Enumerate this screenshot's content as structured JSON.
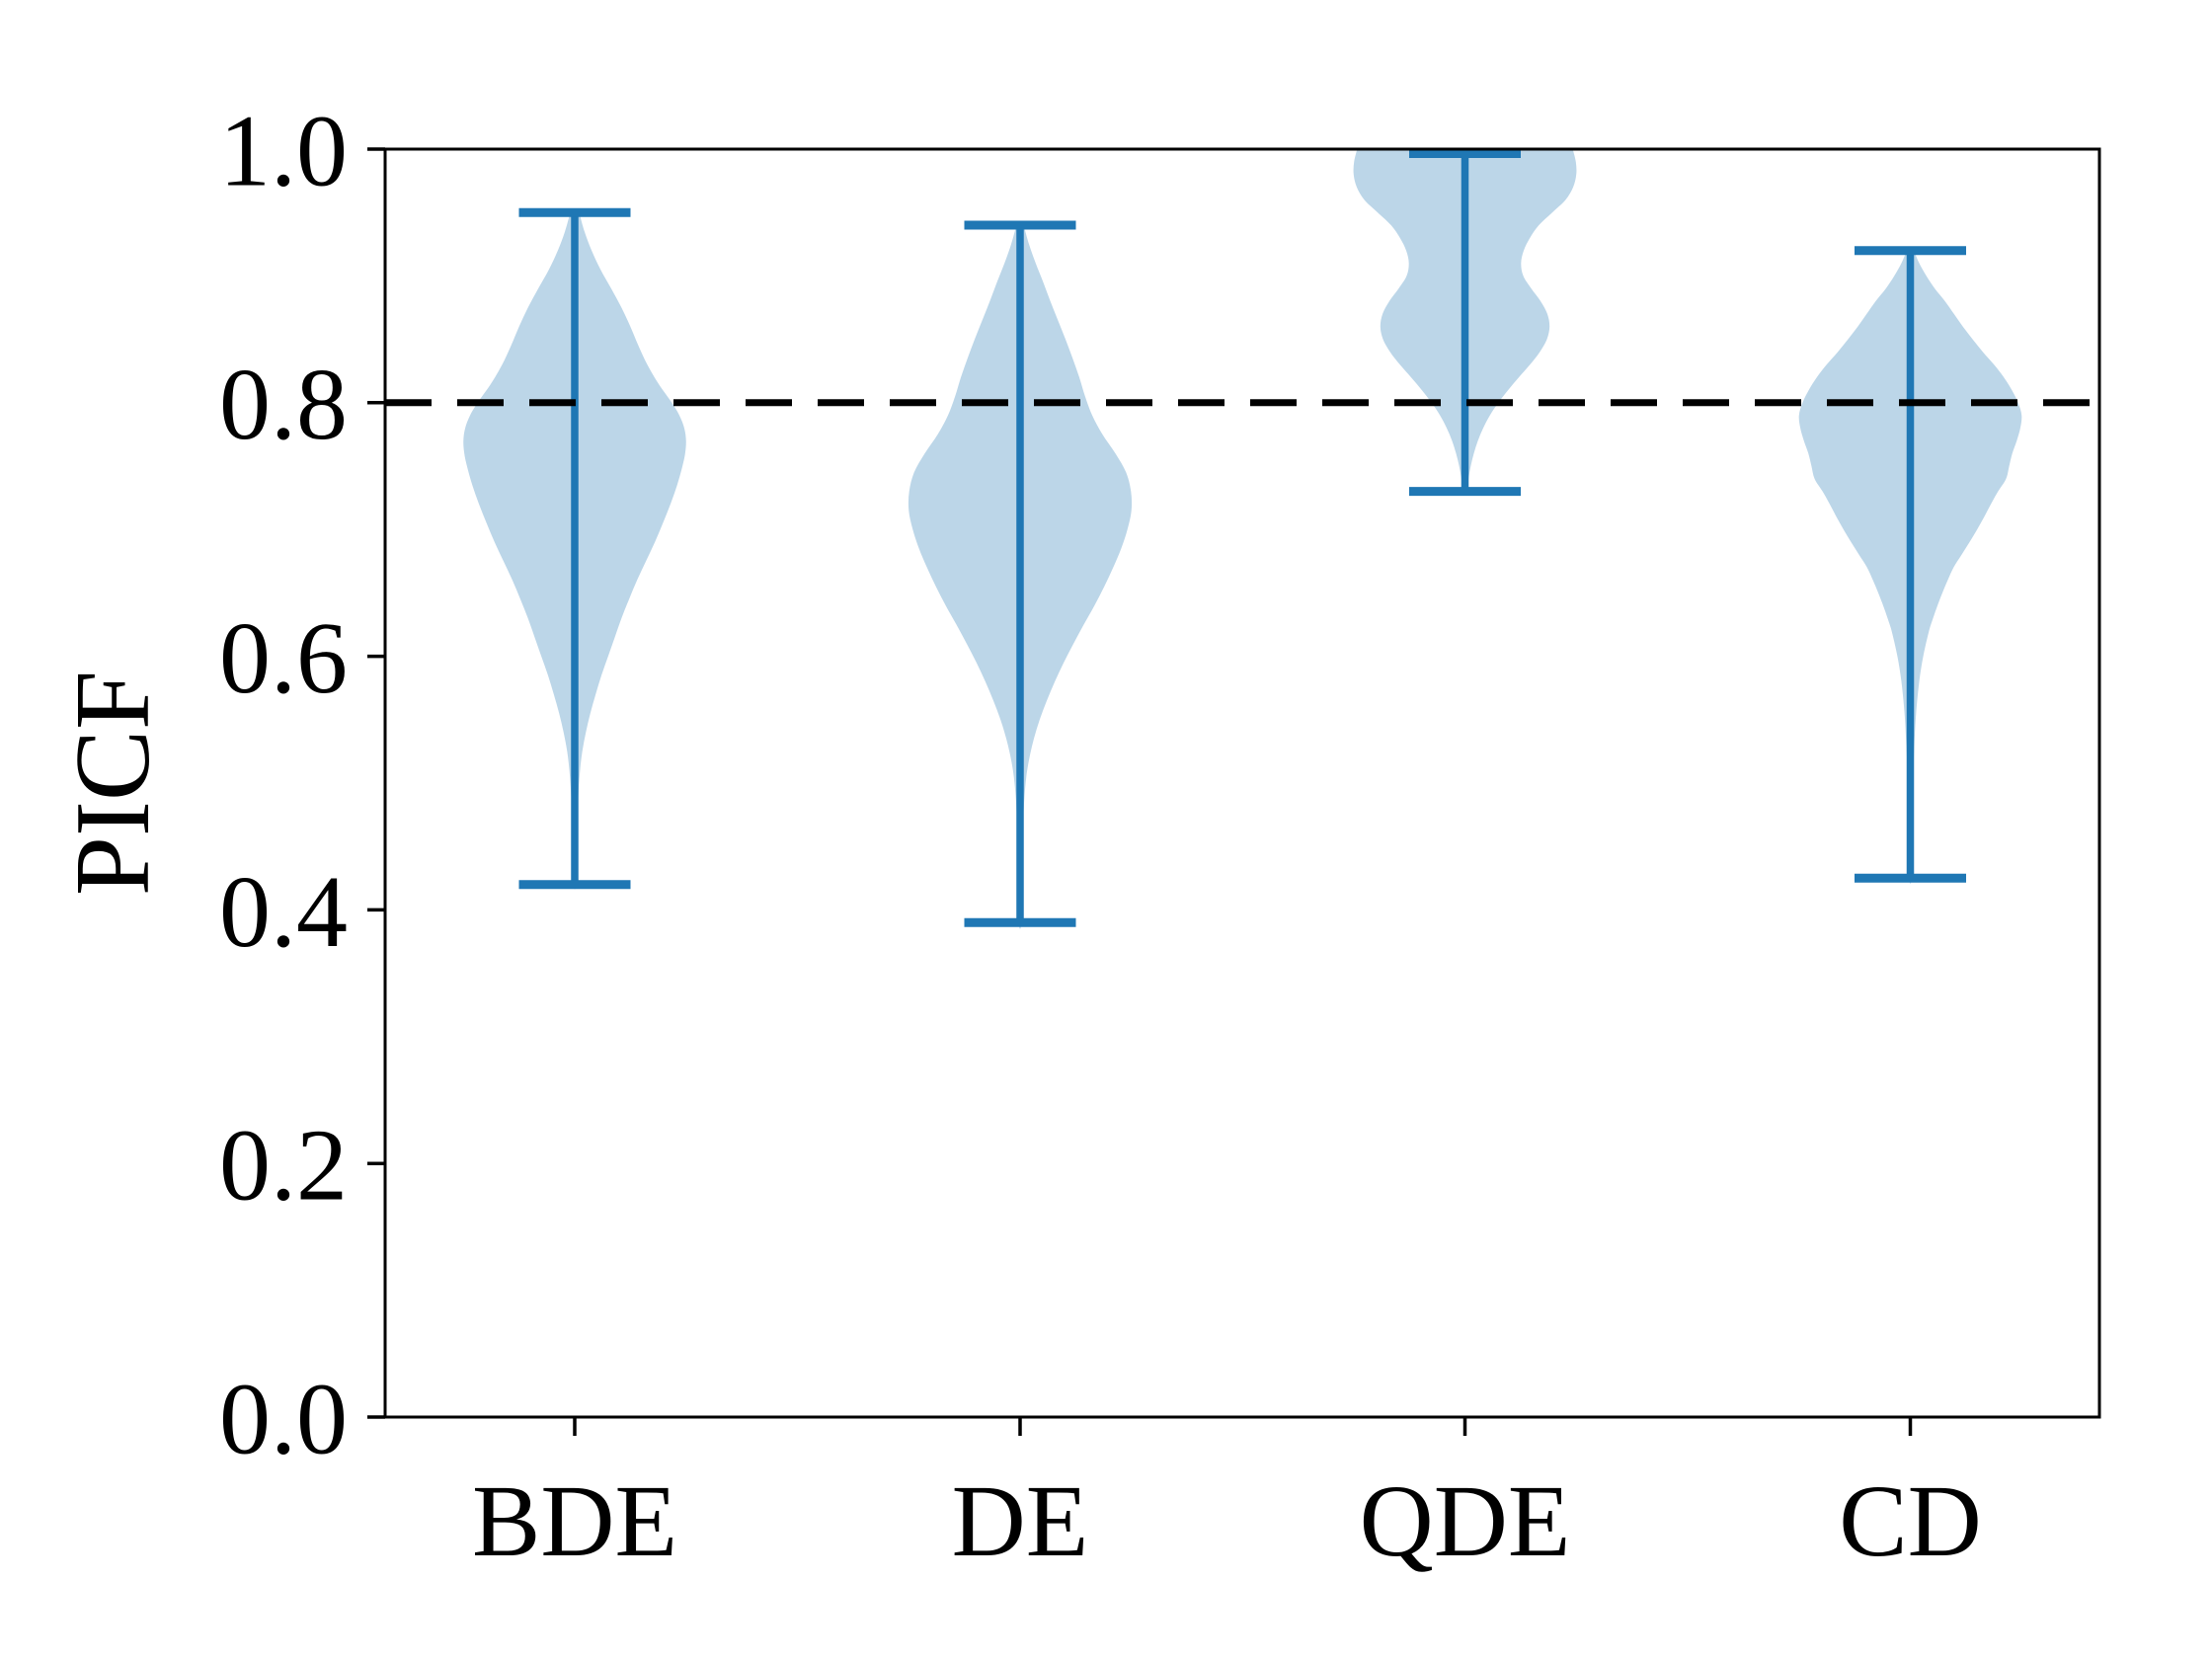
{
  "figure": {
    "background": "#ffffff",
    "text_color": "#000000"
  },
  "chart_data": {
    "type": "violin",
    "title": "",
    "xlabel": "",
    "ylabel": "PICF",
    "categories": [
      "BDE",
      "DE",
      "QDE",
      "CD"
    ],
    "ylim": [
      0.0,
      1.0
    ],
    "yticks": [
      0.0,
      0.2,
      0.4,
      0.6,
      0.8,
      1.0
    ],
    "ytick_labels": [
      "0.0",
      "0.2",
      "0.4",
      "0.6",
      "0.8",
      "1.0"
    ],
    "grid": false,
    "legend": "none",
    "reference_line": {
      "value": 0.8,
      "style": "dashed",
      "color": "#000000"
    },
    "violin_fill_color": "#bcd6e8",
    "violin_line_color": "#1f77b4",
    "axis_color": "#000000",
    "series": [
      {
        "name": "BDE",
        "min": 0.42,
        "max": 0.95,
        "mode": 0.77,
        "profile": [
          [
            0.95,
            0.01
          ],
          [
            0.935,
            0.022
          ],
          [
            0.92,
            0.038
          ],
          [
            0.905,
            0.058
          ],
          [
            0.89,
            0.082
          ],
          [
            0.875,
            0.105
          ],
          [
            0.86,
            0.125
          ],
          [
            0.845,
            0.143
          ],
          [
            0.83,
            0.163
          ],
          [
            0.815,
            0.188
          ],
          [
            0.8,
            0.218
          ],
          [
            0.79,
            0.235
          ],
          [
            0.78,
            0.246
          ],
          [
            0.77,
            0.25
          ],
          [
            0.76,
            0.248
          ],
          [
            0.75,
            0.242
          ],
          [
            0.735,
            0.23
          ],
          [
            0.72,
            0.215
          ],
          [
            0.705,
            0.198
          ],
          [
            0.69,
            0.18
          ],
          [
            0.675,
            0.16
          ],
          [
            0.66,
            0.14
          ],
          [
            0.645,
            0.122
          ],
          [
            0.63,
            0.105
          ],
          [
            0.615,
            0.09
          ],
          [
            0.6,
            0.075
          ],
          [
            0.585,
            0.06
          ],
          [
            0.57,
            0.047
          ],
          [
            0.555,
            0.035
          ],
          [
            0.54,
            0.025
          ],
          [
            0.525,
            0.017
          ],
          [
            0.51,
            0.012
          ],
          [
            0.49,
            0.008
          ],
          [
            0.47,
            0.006
          ],
          [
            0.45,
            0.004
          ],
          [
            0.42,
            0.003
          ]
        ]
      },
      {
        "name": "DE",
        "min": 0.39,
        "max": 0.94,
        "mode": 0.72,
        "profile": [
          [
            0.94,
            0.008
          ],
          [
            0.925,
            0.02
          ],
          [
            0.91,
            0.035
          ],
          [
            0.895,
            0.052
          ],
          [
            0.88,
            0.068
          ],
          [
            0.865,
            0.085
          ],
          [
            0.85,
            0.102
          ],
          [
            0.835,
            0.118
          ],
          [
            0.82,
            0.133
          ],
          [
            0.805,
            0.146
          ],
          [
            0.79,
            0.162
          ],
          [
            0.775,
            0.185
          ],
          [
            0.76,
            0.214
          ],
          [
            0.745,
            0.238
          ],
          [
            0.73,
            0.249
          ],
          [
            0.715,
            0.25
          ],
          [
            0.7,
            0.241
          ],
          [
            0.685,
            0.227
          ],
          [
            0.67,
            0.209
          ],
          [
            0.655,
            0.189
          ],
          [
            0.64,
            0.167
          ],
          [
            0.625,
            0.143
          ],
          [
            0.61,
            0.12
          ],
          [
            0.595,
            0.098
          ],
          [
            0.58,
            0.078
          ],
          [
            0.565,
            0.06
          ],
          [
            0.55,
            0.044
          ],
          [
            0.535,
            0.031
          ],
          [
            0.52,
            0.021
          ],
          [
            0.505,
            0.014
          ],
          [
            0.485,
            0.009
          ],
          [
            0.46,
            0.006
          ],
          [
            0.43,
            0.004
          ],
          [
            0.39,
            0.003
          ]
        ]
      },
      {
        "name": "QDE",
        "min": 0.73,
        "max": 1.0,
        "mode": 0.98,
        "profile": [
          [
            1.0,
            0.242
          ],
          [
            0.99,
            0.249
          ],
          [
            0.98,
            0.25
          ],
          [
            0.97,
            0.243
          ],
          [
            0.96,
            0.226
          ],
          [
            0.95,
            0.196
          ],
          [
            0.94,
            0.166
          ],
          [
            0.93,
            0.146
          ],
          [
            0.92,
            0.132
          ],
          [
            0.91,
            0.126
          ],
          [
            0.9,
            0.131
          ],
          [
            0.89,
            0.149
          ],
          [
            0.88,
            0.17
          ],
          [
            0.87,
            0.185
          ],
          [
            0.86,
            0.19
          ],
          [
            0.85,
            0.184
          ],
          [
            0.84,
            0.168
          ],
          [
            0.83,
            0.146
          ],
          [
            0.82,
            0.121
          ],
          [
            0.81,
            0.097
          ],
          [
            0.8,
            0.075
          ],
          [
            0.79,
            0.056
          ],
          [
            0.78,
            0.041
          ],
          [
            0.77,
            0.029
          ],
          [
            0.76,
            0.02
          ],
          [
            0.75,
            0.013
          ],
          [
            0.74,
            0.008
          ],
          [
            0.73,
            0.004
          ]
        ]
      },
      {
        "name": "CD",
        "min": 0.425,
        "max": 0.92,
        "mode": 0.79,
        "profile": [
          [
            0.92,
            0.008
          ],
          [
            0.91,
            0.02
          ],
          [
            0.9,
            0.036
          ],
          [
            0.89,
            0.055
          ],
          [
            0.88,
            0.078
          ],
          [
            0.87,
            0.098
          ],
          [
            0.86,
            0.118
          ],
          [
            0.85,
            0.14
          ],
          [
            0.84,
            0.163
          ],
          [
            0.83,
            0.188
          ],
          [
            0.82,
            0.21
          ],
          [
            0.81,
            0.228
          ],
          [
            0.8,
            0.242
          ],
          [
            0.79,
            0.25
          ],
          [
            0.78,
            0.247
          ],
          [
            0.77,
            0.239
          ],
          [
            0.76,
            0.229
          ],
          [
            0.75,
            0.222
          ],
          [
            0.74,
            0.215
          ],
          [
            0.73,
            0.197
          ],
          [
            0.72,
            0.181
          ],
          [
            0.71,
            0.166
          ],
          [
            0.7,
            0.15
          ],
          [
            0.69,
            0.133
          ],
          [
            0.68,
            0.115
          ],
          [
            0.67,
            0.097
          ],
          [
            0.66,
            0.084
          ],
          [
            0.65,
            0.072
          ],
          [
            0.64,
            0.061
          ],
          [
            0.63,
            0.051
          ],
          [
            0.62,
            0.042
          ],
          [
            0.6,
            0.029
          ],
          [
            0.58,
            0.02
          ],
          [
            0.555,
            0.013
          ],
          [
            0.53,
            0.009
          ],
          [
            0.5,
            0.006
          ],
          [
            0.46,
            0.004
          ],
          [
            0.425,
            0.003
          ]
        ]
      }
    ]
  }
}
